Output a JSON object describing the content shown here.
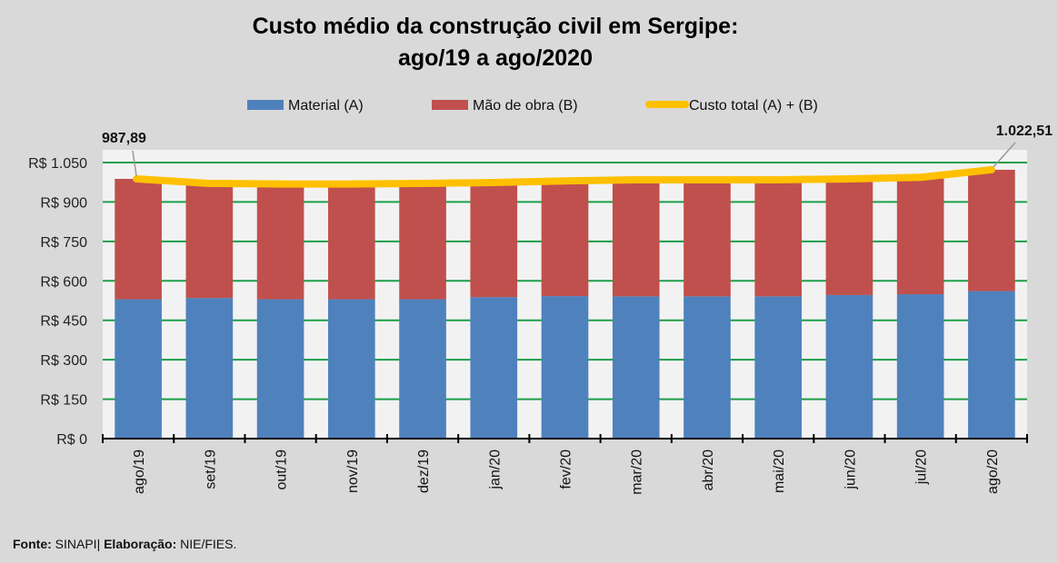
{
  "chart_data": {
    "type": "bar",
    "stacked": true,
    "title": [
      "Custo médio da construção civil em Sergipe:",
      "ago/19 a ago/2020"
    ],
    "xlabel": "",
    "ylabel": "",
    "ylim": [
      0,
      1050
    ],
    "yticks": [
      0,
      150,
      300,
      450,
      600,
      750,
      900,
      1050
    ],
    "ytick_labels": [
      "R$ 0",
      "R$ 150",
      "R$ 300",
      "R$ 450",
      "R$ 600",
      "R$ 750",
      "R$ 900",
      "R$ 1.050"
    ],
    "grid": true,
    "legend_position": "top",
    "categories": [
      "ago/19",
      "set/19",
      "out/19",
      "nov/19",
      "dez/19",
      "jan/20",
      "fev/20",
      "mar/20",
      "abr/20",
      "mai/20",
      "jun/20",
      "jul/20",
      "ago/20"
    ],
    "series": [
      {
        "name": "Material (A)",
        "kind": "bar",
        "color": "#4f81bd",
        "values": [
          530,
          535,
          530,
          530,
          530,
          538,
          542,
          541,
          541,
          541,
          546,
          549,
          561
        ]
      },
      {
        "name": "Mão de obra (B)",
        "kind": "bar",
        "color": "#c0504d",
        "values": [
          457.89,
          435.6,
          438.5,
          438.5,
          440.6,
          436,
          438,
          443.4,
          443.4,
          443.4,
          441.9,
          444.8,
          461.51
        ]
      },
      {
        "name": "Custo total (A) + (B)",
        "kind": "line",
        "color": "#ffc000",
        "values": [
          987.89,
          970.6,
          968.5,
          968.5,
          970.6,
          974,
          980,
          984.4,
          984.4,
          984.4,
          987.9,
          993.8,
          1022.51
        ]
      }
    ],
    "annotations": [
      {
        "category": "ago/19",
        "text": "987,89"
      },
      {
        "category": "ago/20",
        "text": "1.022,51"
      }
    ],
    "colors": {
      "background": "#d9d9d9",
      "plot_background": "#f2f2f2",
      "gridline": "#1e9e4a",
      "axis": "#000000"
    }
  },
  "footer": {
    "source_label": "Fonte:",
    "source_value": "SINAPI",
    "separator": "|",
    "credit_label": "Elaboração:",
    "credit_value": "NIE/FIES."
  }
}
